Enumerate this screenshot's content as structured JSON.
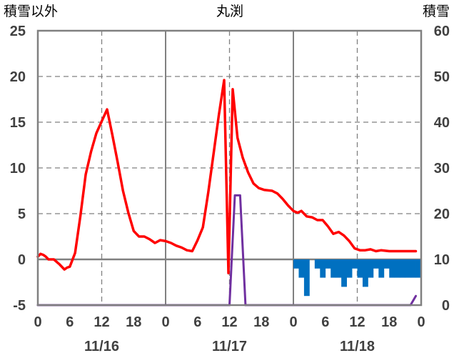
{
  "chart_data": {
    "type": "line",
    "title": "丸渕",
    "y_left_label": "積雪以外",
    "y_right_label": "積雪",
    "y_left_range": [
      -5,
      25
    ],
    "y_left_ticks": [
      "25",
      "20",
      "15",
      "10",
      "5",
      "0",
      "-5"
    ],
    "y_right_range": [
      0,
      60
    ],
    "y_right_ticks": [
      "60",
      "50",
      "40",
      "30",
      "20",
      "10",
      "0"
    ],
    "x_range_hours": [
      0,
      72
    ],
    "x_tick_labels": [
      "0",
      "6",
      "12",
      "18",
      "0",
      "6",
      "12",
      "18",
      "0",
      "6",
      "12",
      "18",
      "0"
    ],
    "date_labels": [
      "11/16",
      "11/17",
      "11/18"
    ],
    "grid": true,
    "colors": {
      "temperature": "#ff0000",
      "snow_depth": "#7030a0",
      "snow_change": "#0070c0",
      "grid": "#808080",
      "frame": "#808080"
    },
    "series": [
      {
        "axis": "left",
        "style": "line",
        "values": [
          [
            0,
            0.3
          ],
          [
            0.5,
            0.6
          ],
          [
            1,
            0.5
          ],
          [
            1.5,
            0.3
          ],
          [
            2,
            0
          ],
          [
            3,
            0
          ],
          [
            4,
            -0.5
          ],
          [
            5,
            -1.1
          ],
          [
            5.5,
            -0.9
          ],
          [
            6,
            -0.8
          ],
          [
            7,
            0.7
          ],
          [
            8,
            4.8
          ],
          [
            9,
            9.3
          ],
          [
            10,
            11.8
          ],
          [
            11,
            13.8
          ],
          [
            12,
            15.1
          ],
          [
            13,
            16.4
          ],
          [
            14,
            13.6
          ],
          [
            15,
            10.6
          ],
          [
            16,
            7.5
          ],
          [
            17,
            5.1
          ],
          [
            18,
            3.1
          ],
          [
            19,
            2.5
          ],
          [
            20,
            2.5
          ],
          [
            21,
            2.2
          ],
          [
            22,
            1.8
          ],
          [
            23,
            2.1
          ],
          [
            24,
            2.0
          ],
          [
            25,
            1.8
          ],
          [
            26,
            1.5
          ],
          [
            27,
            1.3
          ],
          [
            28,
            1.0
          ],
          [
            29,
            0.9
          ],
          [
            30,
            2.1
          ],
          [
            31,
            3.5
          ],
          [
            32,
            7.3
          ],
          [
            33,
            11.5
          ],
          [
            34,
            15.8
          ],
          [
            35,
            19.6
          ],
          [
            35.8,
            -1.5
          ],
          [
            36.6,
            18.6
          ],
          [
            37.5,
            13.3
          ],
          [
            38.5,
            11.1
          ],
          [
            39.5,
            9.5
          ],
          [
            40.5,
            8.3
          ],
          [
            41.5,
            7.8
          ],
          [
            42.5,
            7.6
          ],
          [
            44,
            7.5
          ],
          [
            45,
            7.2
          ],
          [
            46,
            6.6
          ],
          [
            47,
            5.9
          ],
          [
            48,
            5.3
          ],
          [
            48.8,
            5.1
          ],
          [
            49.5,
            5.3
          ],
          [
            50,
            5.0
          ],
          [
            50.5,
            4.7
          ],
          [
            51.5,
            4.6
          ],
          [
            52.5,
            4.3
          ],
          [
            53.5,
            4.3
          ],
          [
            54.5,
            3.6
          ],
          [
            55.5,
            2.8
          ],
          [
            56.5,
            3.0
          ],
          [
            57.5,
            2.6
          ],
          [
            58.5,
            2.0
          ],
          [
            59.5,
            1.2
          ],
          [
            60.5,
            1.0
          ],
          [
            61.5,
            1.0
          ],
          [
            62.5,
            1.1
          ],
          [
            63.5,
            0.9
          ],
          [
            64.5,
            1.0
          ],
          [
            66,
            0.9
          ],
          [
            67.5,
            0.9
          ],
          [
            71,
            0.9
          ]
        ]
      },
      {
        "axis": "right",
        "style": "line",
        "values": [
          [
            0,
            0
          ],
          [
            36,
            0
          ],
          [
            37,
            24
          ],
          [
            38,
            24
          ],
          [
            39,
            0
          ],
          [
            70,
            0
          ],
          [
            71,
            2
          ]
        ]
      },
      {
        "axis": "left",
        "style": "bar",
        "values": [
          [
            48,
            -1
          ],
          [
            49,
            -2
          ],
          [
            50,
            -4
          ],
          [
            51,
            0
          ],
          [
            52,
            -1
          ],
          [
            53,
            -2
          ],
          [
            54,
            -1
          ],
          [
            55,
            -2
          ],
          [
            56,
            -2
          ],
          [
            57,
            -3
          ],
          [
            58,
            -2
          ],
          [
            59,
            -1
          ],
          [
            60,
            -2
          ],
          [
            61,
            -3
          ],
          [
            62,
            -2
          ],
          [
            63,
            -1
          ],
          [
            64,
            -2
          ],
          [
            65,
            -1
          ],
          [
            66,
            -2
          ],
          [
            67,
            -2
          ],
          [
            68,
            -2
          ],
          [
            69,
            -2
          ],
          [
            70,
            -2
          ],
          [
            71,
            -2
          ]
        ]
      }
    ]
  }
}
